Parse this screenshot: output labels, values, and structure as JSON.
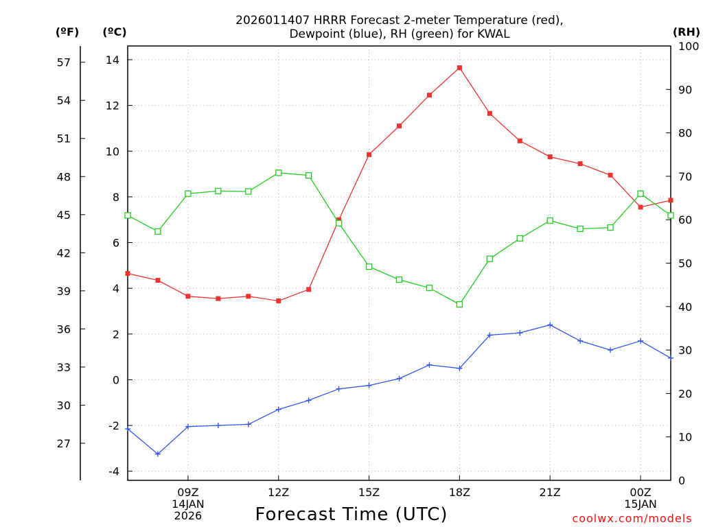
{
  "chart_data": {
    "type": "line",
    "title_line1": "2026011407 HRRR Forecast 2-meter Temperature (red),",
    "title_line2": "Dewpoint (blue), RH (green) for KWAL",
    "xlabel": "Forecast Time (UTC)",
    "credit": "coolwx.com/models",
    "units": {
      "fahrenheit": "(ºF)",
      "celsius": "(ºC)",
      "rh": "(RH)"
    },
    "x": [
      7,
      8,
      9,
      10,
      11,
      12,
      13,
      14,
      15,
      16,
      17,
      18,
      19,
      20,
      21,
      22,
      23,
      24,
      25
    ],
    "xlim": [
      7,
      25
    ],
    "x_ticks": [
      {
        "x": 9,
        "lines": [
          "09Z",
          "14JAN",
          "2026"
        ]
      },
      {
        "x": 12,
        "lines": [
          "12Z"
        ]
      },
      {
        "x": 15,
        "lines": [
          "15Z"
        ]
      },
      {
        "x": 18,
        "lines": [
          "18Z"
        ]
      },
      {
        "x": 21,
        "lines": [
          "21Z"
        ]
      },
      {
        "x": 24,
        "lines": [
          "00Z",
          "15JAN"
        ]
      }
    ],
    "celsius_axis": {
      "lim": [
        -4.4,
        14.6
      ],
      "ticks": [
        -4,
        -2,
        0,
        2,
        4,
        6,
        8,
        10,
        12,
        14
      ]
    },
    "fahrenheit_axis": {
      "ticks": [
        27,
        30,
        33,
        36,
        39,
        42,
        45,
        48,
        51,
        54,
        57
      ]
    },
    "rh_axis": {
      "lim": [
        0,
        100
      ],
      "ticks": [
        0,
        10,
        20,
        30,
        40,
        50,
        60,
        70,
        80,
        90,
        100
      ]
    },
    "series": [
      {
        "name": "Temperature",
        "axis": "celsius",
        "color": "#ee3333",
        "marker": "filled-square",
        "values": [
          4.65,
          4.35,
          3.65,
          3.55,
          3.65,
          3.45,
          3.95,
          7.0,
          9.85,
          11.1,
          12.45,
          13.65,
          11.65,
          10.45,
          9.75,
          9.45,
          8.95,
          7.55,
          7.85
        ]
      },
      {
        "name": "Dewpoint",
        "axis": "celsius",
        "color": "#3355ee",
        "marker": "plus",
        "values": [
          -2.15,
          -3.25,
          -2.05,
          -2.0,
          -1.95,
          -1.3,
          -0.9,
          -0.4,
          -0.25,
          0.05,
          0.65,
          0.5,
          1.95,
          2.05,
          2.4,
          1.7,
          1.3,
          1.7,
          0.95
        ]
      },
      {
        "name": "RH",
        "axis": "rh",
        "color": "#22cc22",
        "marker": "open-square",
        "values": [
          61,
          57.3,
          66,
          66.6,
          66.5,
          70.8,
          70.2,
          59.2,
          49.2,
          46.2,
          44.3,
          40.5,
          51,
          55.7,
          59.8,
          57.9,
          58.2,
          66,
          61
        ]
      }
    ]
  }
}
